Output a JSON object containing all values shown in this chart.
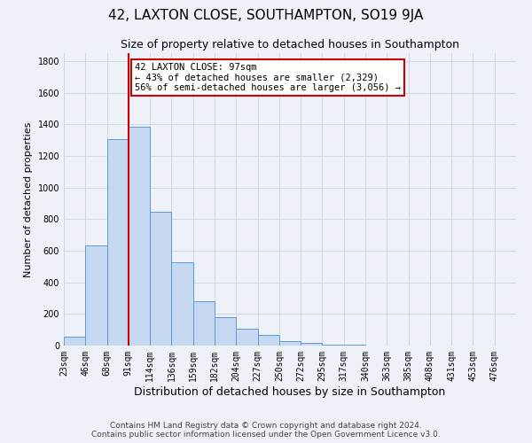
{
  "title": "42, LAXTON CLOSE, SOUTHAMPTON, SO19 9JA",
  "subtitle": "Size of property relative to detached houses in Southampton",
  "xlabel": "Distribution of detached houses by size in Southampton",
  "ylabel": "Number of detached properties",
  "bar_values": [
    55,
    635,
    1305,
    1385,
    845,
    525,
    280,
    180,
    105,
    65,
    30,
    15,
    5,
    3,
    2,
    1,
    0,
    0,
    0,
    0,
    0
  ],
  "bar_labels": [
    "23sqm",
    "46sqm",
    "68sqm",
    "91sqm",
    "114sqm",
    "136sqm",
    "159sqm",
    "182sqm",
    "204sqm",
    "227sqm",
    "250sqm",
    "272sqm",
    "295sqm",
    "317sqm",
    "340sqm",
    "363sqm",
    "385sqm",
    "408sqm",
    "431sqm",
    "453sqm",
    "476sqm"
  ],
  "bar_color": "#c5d8f0",
  "bar_edge_color": "#5b9bd5",
  "grid_color": "#d0d8e8",
  "background_color": "#eef2f8",
  "vline_x": 3,
  "vline_color": "#cc0000",
  "annotation_title": "42 LAXTON CLOSE: 97sqm",
  "annotation_line1": "← 43% of detached houses are smaller (2,329)",
  "annotation_line2": "56% of semi-detached houses are larger (3,056) →",
  "annotation_box_color": "#ffffff",
  "annotation_box_edge": "#cc0000",
  "ylim": [
    0,
    1850
  ],
  "yticks": [
    0,
    200,
    400,
    600,
    800,
    1000,
    1200,
    1400,
    1600,
    1800
  ],
  "footer_line1": "Contains HM Land Registry data © Crown copyright and database right 2024.",
  "footer_line2": "Contains public sector information licensed under the Open Government Licence v3.0.",
  "title_fontsize": 11,
  "subtitle_fontsize": 9,
  "xlabel_fontsize": 9,
  "ylabel_fontsize": 8,
  "tick_fontsize": 7,
  "footer_fontsize": 6.5,
  "annotation_fontsize": 7.5,
  "figsize": [
    6.0,
    5.0
  ],
  "dpi": 100
}
